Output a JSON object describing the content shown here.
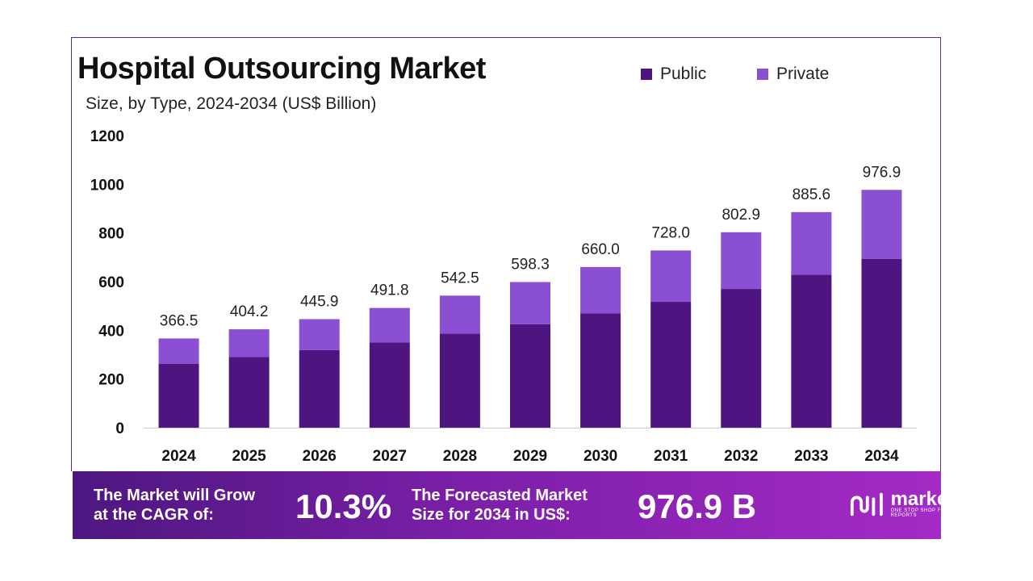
{
  "header": {
    "title": "Hospital Outsourcing Market",
    "subtitle": "Size, by Type, 2024-2034 (US$ Billion)"
  },
  "colors": {
    "public": "#4e1580",
    "private": "#8a4fd2",
    "axis": "#cccccc",
    "border": "#5a2a8c"
  },
  "chart_data": {
    "type": "bar",
    "stacked": true,
    "title": "Hospital Outsourcing Market",
    "subtitle": "Size, by Type, 2024-2034 (US$ Billion)",
    "categories": [
      "2024",
      "2025",
      "2026",
      "2027",
      "2028",
      "2029",
      "2030",
      "2031",
      "2032",
      "2033",
      "2034"
    ],
    "series": [
      {
        "name": "Public",
        "values": [
          263,
          290,
          319,
          350,
          386,
          425,
          469,
          517,
          570,
          629,
          693
        ]
      },
      {
        "name": "Private",
        "values": [
          103.5,
          114.2,
          126.9,
          141.8,
          156.5,
          173.3,
          191.0,
          211.0,
          232.9,
          256.6,
          283.9
        ]
      }
    ],
    "totals": [
      366.5,
      404.2,
      445.9,
      491.8,
      542.5,
      598.3,
      660.0,
      728.0,
      802.9,
      885.6,
      976.9
    ],
    "total_labels": [
      "366.5",
      "404.2",
      "445.9",
      "491.8",
      "542.5",
      "598.3",
      "660.0",
      "728.0",
      "802.9",
      "885.6",
      "976.9"
    ],
    "ylim": [
      0,
      1200
    ],
    "yticks": [
      0,
      200,
      400,
      600,
      800,
      1000,
      1200
    ],
    "ytick_labels": [
      "0",
      "200",
      "400",
      "600",
      "800",
      "1000",
      "1200"
    ],
    "legend_position": "top-right",
    "grid": false
  },
  "footer": {
    "cagr_text_line1": "The Market will Grow",
    "cagr_text_line2": "at the CAGR of:",
    "cagr_value": "10.3%",
    "forecast_text_line1": "The Forecasted Market",
    "forecast_text_line2": "Size for 2034 in US$:",
    "forecast_value": "976.9 B",
    "brand": "market.us",
    "tagline": "ONE STOP SHOP FOR THE REPORTS"
  }
}
